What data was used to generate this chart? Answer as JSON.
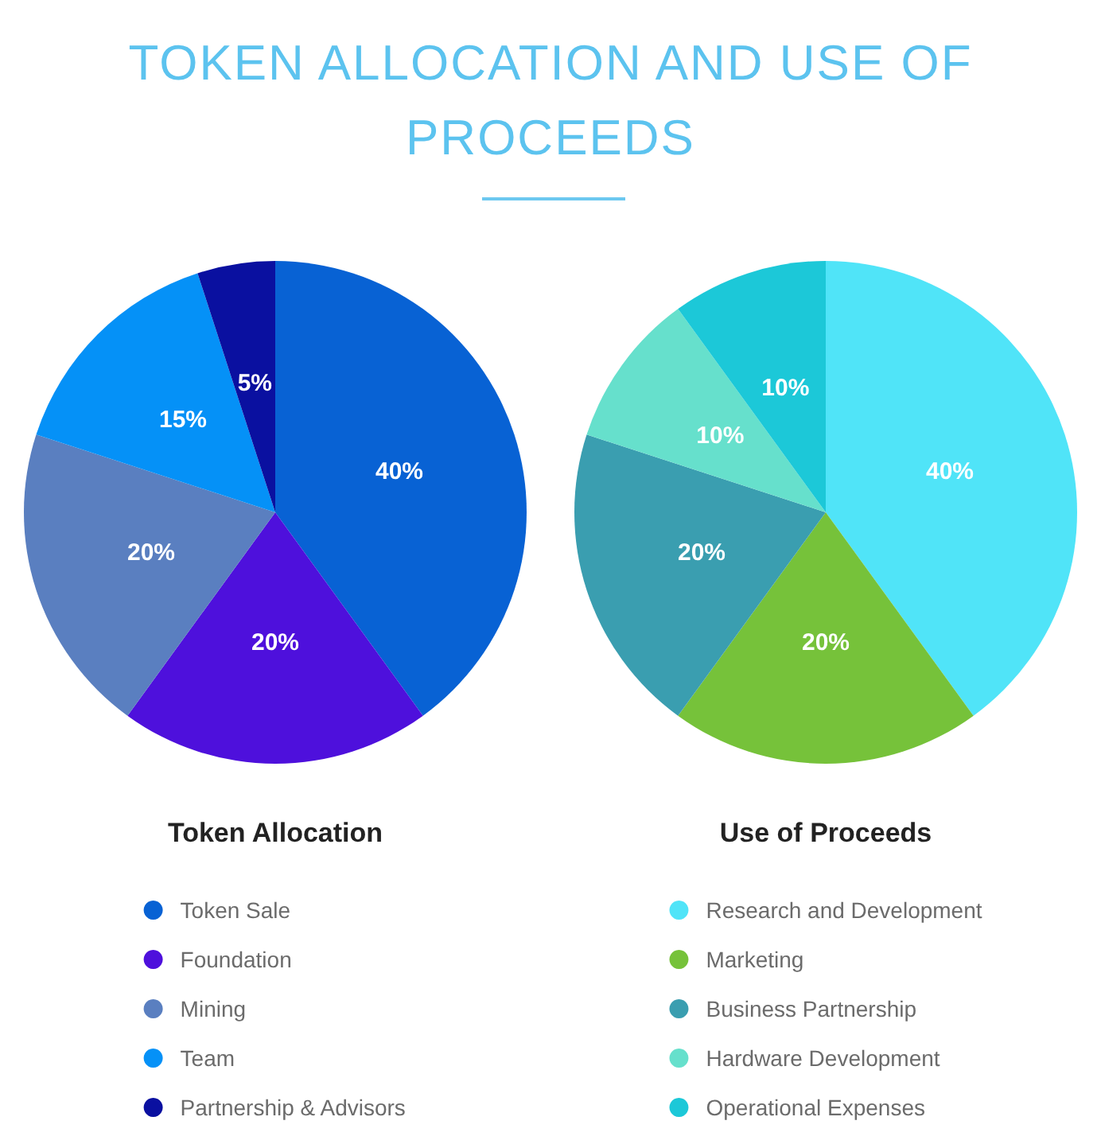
{
  "chart_data": [
    {
      "type": "pie",
      "title": "TOKEN ALLOCATION AND USE OF PROCEEDS",
      "legend_title": "Token Allocation",
      "categories": [
        "Token Sale",
        "Foundation",
        "Mining",
        "Team",
        "Partnership & Advisors"
      ],
      "values": [
        40,
        20,
        20,
        15,
        5
      ],
      "colors": [
        "#0862d4",
        "#4e10dc",
        "#5a7fc0",
        "#0591f7",
        "#0a10a0"
      ],
      "value_labels": [
        "40%",
        "20%",
        "20%",
        "15%",
        "5%"
      ],
      "legend": "bottom"
    },
    {
      "type": "pie",
      "legend_title": "Use of Proceeds",
      "categories": [
        "Research and Development",
        "Marketing",
        "Business Partnership",
        "Hardware Development",
        "Operational Expenses"
      ],
      "values": [
        40,
        20,
        20,
        10,
        10
      ],
      "colors": [
        "#50e4f8",
        "#76c23a",
        "#3a9eb0",
        "#66e0cc",
        "#1cc8d8"
      ],
      "value_labels": [
        "40%",
        "20%",
        "20%",
        "10%",
        "10%"
      ],
      "legend": "bottom"
    }
  ]
}
